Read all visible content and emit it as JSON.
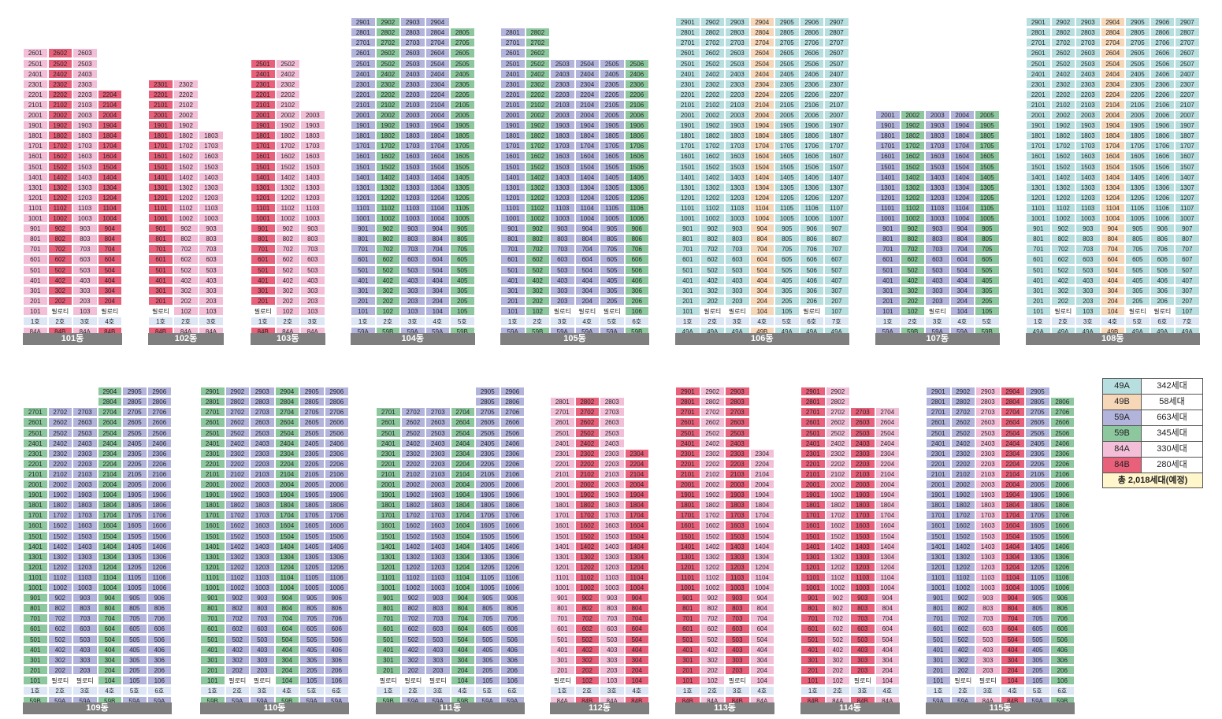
{
  "colors": {
    "49A": "#b7dfe0",
    "49B": "#f6d7b8",
    "59A": "#b3b4dc",
    "59B": "#8cc79e",
    "84A": "#f3bfd8",
    "84B": "#e8607a",
    "ho": "#dce6f4",
    "label": "#7f7f7f"
  },
  "pilotis_label": "필로티",
  "buildings": [
    {
      "name": "101동",
      "types": [
        "84A",
        "84B",
        "84A",
        "84B"
      ],
      "tops": [
        26,
        26,
        26,
        22
      ],
      "pilotis": [
        {
          "line": 2,
          "floor": 1
        },
        {
          "line": 4,
          "floor": 1
        }
      ]
    },
    {
      "name": "102동",
      "types": [
        "84B",
        "84A",
        "84A"
      ],
      "tops": [
        23,
        23,
        18
      ],
      "pilotis": [
        {
          "line": 1,
          "floor": 1
        }
      ]
    },
    {
      "name": "103동",
      "types": [
        "84B",
        "84A",
        "84A"
      ],
      "tops": [
        25,
        25,
        20
      ],
      "pilotis": [
        {
          "line": 1,
          "floor": 1
        }
      ]
    },
    {
      "name": "104동",
      "types": [
        "59A",
        "59B",
        "59A",
        "59A",
        "59B"
      ],
      "tops": [
        29,
        29,
        29,
        29,
        28
      ],
      "pilotis": []
    },
    {
      "name": "105동",
      "types": [
        "59A",
        "59B",
        "59A",
        "59A",
        "59A",
        "59B"
      ],
      "tops": [
        28,
        28,
        25,
        25,
        25,
        25
      ],
      "pilotis": [
        {
          "line": 3,
          "floor": 1
        },
        {
          "line": 4,
          "floor": 1
        },
        {
          "line": 5,
          "floor": 1
        }
      ]
    },
    {
      "name": "106동",
      "types": [
        "49A",
        "49A",
        "49A",
        "49B",
        "49A",
        "49A",
        "49A"
      ],
      "tops": [
        29,
        29,
        29,
        29,
        29,
        29,
        29
      ],
      "pilotis": [
        {
          "line": 2,
          "floor": 1
        },
        {
          "line": 3,
          "floor": 1
        },
        {
          "line": 6,
          "floor": 1
        }
      ]
    },
    {
      "name": "107동",
      "types": [
        "59A",
        "59B",
        "59A",
        "59A",
        "59B"
      ],
      "tops": [
        20,
        20,
        20,
        20,
        20
      ],
      "pilotis": [
        {
          "line": 3,
          "floor": 1
        }
      ]
    },
    {
      "name": "108동",
      "types": [
        "49A",
        "49A",
        "49A",
        "49B",
        "49A",
        "49A",
        "49A"
      ],
      "tops": [
        29,
        29,
        29,
        29,
        29,
        29,
        29
      ],
      "pilotis": [
        {
          "line": 2,
          "floor": 1
        },
        {
          "line": 5,
          "floor": 1
        },
        {
          "line": 6,
          "floor": 1
        }
      ]
    },
    {
      "name": "109동",
      "types": [
        "59B",
        "59A",
        "59A",
        "59B",
        "59A",
        "59A"
      ],
      "tops": [
        27,
        27,
        27,
        29,
        29,
        29
      ],
      "pilotis": [
        {
          "line": 2,
          "floor": 1
        },
        {
          "line": 3,
          "floor": 1
        }
      ]
    },
    {
      "name": "110동",
      "types": [
        "59B",
        "59A",
        "59A",
        "59B",
        "59A",
        "59A"
      ],
      "tops": [
        29,
        29,
        29,
        29,
        29,
        29
      ],
      "pilotis": [
        {
          "line": 2,
          "floor": 1
        },
        {
          "line": 3,
          "floor": 1
        }
      ]
    },
    {
      "name": "111동",
      "types": [
        "59B",
        "59A",
        "59A",
        "59B",
        "59A",
        "59A"
      ],
      "tops": [
        27,
        27,
        27,
        27,
        29,
        29
      ],
      "pilotis": [
        {
          "line": 1,
          "floor": 1
        },
        {
          "line": 2,
          "floor": 1
        },
        {
          "line": 3,
          "floor": 1
        }
      ]
    },
    {
      "name": "112동",
      "types": [
        "84A",
        "84B",
        "84A",
        "84B"
      ],
      "tops": [
        28,
        28,
        28,
        23
      ],
      "pilotis": [
        {
          "line": 1,
          "floor": 1
        }
      ]
    },
    {
      "name": "113동",
      "types": [
        "84B",
        "84A",
        "84B",
        "84A"
      ],
      "tops": [
        29,
        29,
        29,
        23
      ],
      "pilotis": [
        {
          "line": 3,
          "floor": 1
        }
      ]
    },
    {
      "name": "114동",
      "types": [
        "84B",
        "84A",
        "84B",
        "84A"
      ],
      "tops": [
        29,
        29,
        27,
        27
      ],
      "pilotis": [
        {
          "line": 3,
          "floor": 1
        }
      ]
    },
    {
      "name": "115동",
      "types": [
        "59A",
        "59A",
        "84A",
        "84B",
        "59A",
        "59B"
      ],
      "tops": [
        29,
        29,
        29,
        29,
        29,
        28
      ],
      "pilotis": [
        {
          "line": 2,
          "floor": 1
        },
        {
          "line": 3,
          "floor": 1
        }
      ]
    }
  ],
  "legend": {
    "rows": [
      {
        "type": "49A",
        "count": "342세대"
      },
      {
        "type": "49B",
        "count": "58세대"
      },
      {
        "type": "59A",
        "count": "663세대"
      },
      {
        "type": "59B",
        "count": "345세대"
      },
      {
        "type": "84A",
        "count": "330세대"
      },
      {
        "type": "84B",
        "count": "280세대"
      }
    ],
    "total": "총 2,018세대(예정)"
  }
}
